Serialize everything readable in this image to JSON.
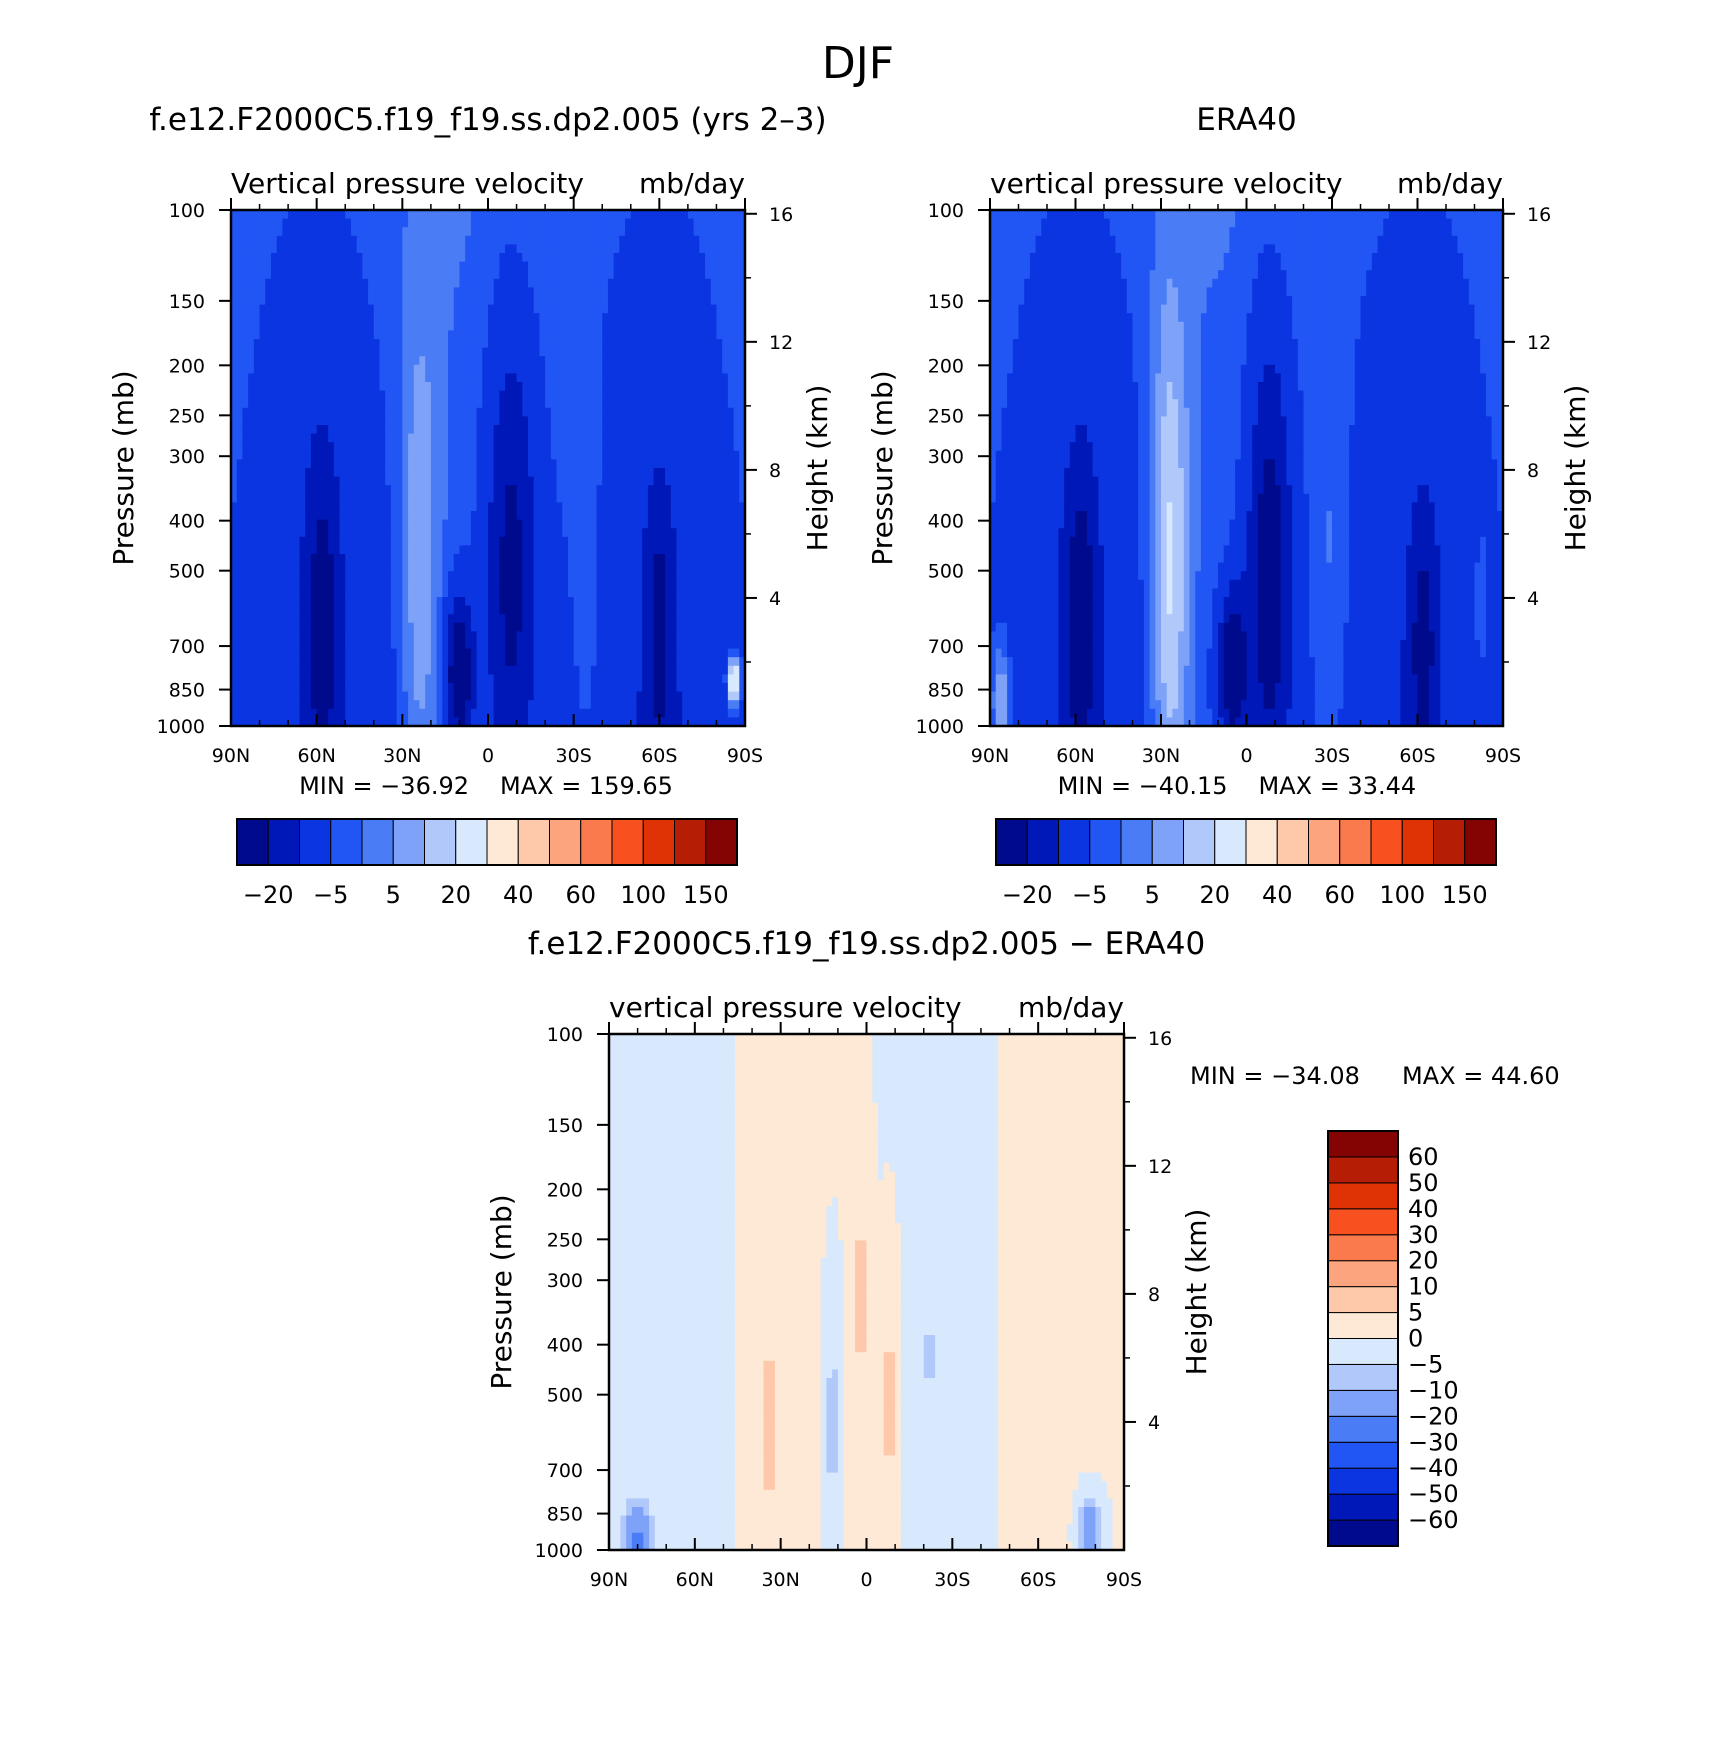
{
  "figure_title": "DJF",
  "chart_data": [
    {
      "type": "heatmap",
      "panel_title": "f.e12.F2000C5.f19_f19.ss.dp2.005 (yrs 2–3)",
      "variable": "Vertical pressure velocity",
      "units": "mb/day",
      "ylabel": "Pressure (mb)",
      "ylabel_right": "Height (km)",
      "x_ticks": [
        "90N",
        "60N",
        "30N",
        "0",
        "30S",
        "60S",
        "90S"
      ],
      "y_ticks": [
        "100",
        "150",
        "200",
        "250",
        "300",
        "400",
        "500",
        "700",
        "850",
        "1000"
      ],
      "y_ticks_right": [
        "16",
        "12",
        "8",
        "4"
      ],
      "xlim": [
        90,
        -90
      ],
      "ylim": [
        1000,
        100
      ],
      "y_scale": "log",
      "min_label": "MIN = −36.92",
      "max_label": "MAX = 159.65",
      "min": -36.92,
      "max": 159.65,
      "colorbar": {
        "orientation": "horizontal",
        "colors": [
          "#000a8c",
          "#0018b8",
          "#0a35e0",
          "#2156f5",
          "#4a7cf5",
          "#7ea2f7",
          "#b0c8fa",
          "#d8e9fd",
          "#fde9d6",
          "#fdc9aa",
          "#fba47e",
          "#fa7a4e",
          "#f9501f",
          "#e03305",
          "#b51e05",
          "#840303"
        ],
        "labels": [
          "−20",
          "−5",
          "5",
          "20",
          "40",
          "60",
          "100",
          "150"
        ]
      },
      "features": [
        {
          "lat": -8,
          "p": 420,
          "value": -30,
          "wx": 9,
          "wl": 2.2
        },
        {
          "lat": 10,
          "p": 780,
          "value": -35,
          "wx": 5,
          "wl": 0.7
        },
        {
          "lat": 58,
          "p": 560,
          "value": -22,
          "wx": 6,
          "wl": 1.6
        },
        {
          "lat": -60,
          "p": 600,
          "value": -20,
          "wx": 5,
          "wl": 1.3
        },
        {
          "lat": 24,
          "p": 420,
          "value": 15,
          "wx": 7,
          "wl": 2.6
        },
        {
          "lat": -35,
          "p": 500,
          "value": 6,
          "wx": 5,
          "wl": 2.0
        },
        {
          "lat": 80,
          "p": 650,
          "value": 3,
          "wx": 3,
          "wl": 1.3
        },
        {
          "lat": -86,
          "p": 820,
          "value": 40,
          "wx": 2,
          "wl": 0.2
        }
      ]
    },
    {
      "type": "heatmap",
      "panel_title": "ERA40",
      "variable": "vertical pressure velocity",
      "units": "mb/day",
      "ylabel": "Pressure (mb)",
      "ylabel_right": "Height (km)",
      "x_ticks": [
        "90N",
        "60N",
        "30N",
        "0",
        "30S",
        "60S",
        "90S"
      ],
      "y_ticks": [
        "100",
        "150",
        "200",
        "250",
        "300",
        "400",
        "500",
        "700",
        "850",
        "1000"
      ],
      "y_ticks_right": [
        "16",
        "12",
        "8",
        "4"
      ],
      "xlim": [
        90,
        -90
      ],
      "ylim": [
        1000,
        100
      ],
      "y_scale": "log",
      "min_label": "MIN = −40.15",
      "max_label": "MAX =  33.44",
      "min": -40.15,
      "max": 33.44,
      "colorbar": {
        "orientation": "horizontal",
        "colors": [
          "#000a8c",
          "#0018b8",
          "#0a35e0",
          "#2156f5",
          "#4a7cf5",
          "#7ea2f7",
          "#b0c8fa",
          "#d8e9fd",
          "#fde9d6",
          "#fdc9aa",
          "#fba47e",
          "#fa7a4e",
          "#f9501f",
          "#e03305",
          "#b51e05",
          "#840303"
        ],
        "labels": [
          "−20",
          "−5",
          "5",
          "20",
          "40",
          "60",
          "100",
          "150"
        ]
      },
      "features": [
        {
          "lat": -8,
          "p": 440,
          "value": -34,
          "wx": 8,
          "wl": 2.2
        },
        {
          "lat": 5,
          "p": 760,
          "value": -36,
          "wx": 5,
          "wl": 0.7
        },
        {
          "lat": 58,
          "p": 560,
          "value": -24,
          "wx": 6,
          "wl": 1.5
        },
        {
          "lat": -62,
          "p": 650,
          "value": -20,
          "wx": 5,
          "wl": 1.2
        },
        {
          "lat": 27,
          "p": 430,
          "value": 24,
          "wx": 7,
          "wl": 2.6
        },
        {
          "lat": -30,
          "p": 480,
          "value": 7,
          "wx": 6,
          "wl": 2.0
        },
        {
          "lat": -82,
          "p": 620,
          "value": 5,
          "wx": 3,
          "wl": 1.0
        },
        {
          "lat": 86,
          "p": 900,
          "value": 20,
          "wx": 3,
          "wl": 0.5
        }
      ]
    },
    {
      "type": "heatmap",
      "panel_title": "f.e12.F2000C5.f19_f19.ss.dp2.005 − ERA40",
      "variable": "vertical pressure velocity",
      "units": "mb/day",
      "ylabel": "Pressure (mb)",
      "ylabel_right": "Height (km)",
      "x_ticks": [
        "90N",
        "60N",
        "30N",
        "0",
        "30S",
        "60S",
        "90S"
      ],
      "y_ticks": [
        "100",
        "150",
        "200",
        "250",
        "300",
        "400",
        "500",
        "700",
        "850",
        "1000"
      ],
      "y_ticks_right": [
        "16",
        "12",
        "8",
        "4"
      ],
      "xlim": [
        90,
        -90
      ],
      "ylim": [
        1000,
        100
      ],
      "y_scale": "log",
      "min_label": "MIN = −34.08",
      "max_label": "MAX =  44.60",
      "min": -34.08,
      "max": 44.6,
      "colorbar": {
        "orientation": "vertical",
        "colors": [
          "#000a8c",
          "#0018b8",
          "#0a35e0",
          "#2156f5",
          "#4a7cf5",
          "#7ea2f7",
          "#b0c8fa",
          "#d8e9fd",
          "#fde9d6",
          "#fdc9aa",
          "#fba47e",
          "#fa7a4e",
          "#f9501f",
          "#e03305",
          "#b51e05",
          "#840303"
        ],
        "labels": [
          "60",
          "50",
          "40",
          "30",
          "20",
          "10",
          "5",
          "0",
          "−5",
          "−10",
          "−20",
          "−30",
          "−40",
          "−50",
          "−60"
        ]
      },
      "features": [
        {
          "lat": 2,
          "p": 300,
          "value": 8,
          "wx": 3,
          "wl": 1.5
        },
        {
          "lat": -8,
          "p": 500,
          "value": 8,
          "wx": 3,
          "wl": 1.2
        },
        {
          "lat": 34,
          "p": 550,
          "value": 8,
          "wx": 3,
          "wl": 1.0
        },
        {
          "lat": 12,
          "p": 550,
          "value": -8,
          "wx": 3,
          "wl": 1.2
        },
        {
          "lat": -22,
          "p": 400,
          "value": -6,
          "wx": 3,
          "wl": 1.2
        },
        {
          "lat": 80,
          "p": 950,
          "value": -22,
          "wx": 5,
          "wl": 0.3
        },
        {
          "lat": -78,
          "p": 920,
          "value": -18,
          "wx": 4,
          "wl": 0.3
        }
      ]
    }
  ]
}
